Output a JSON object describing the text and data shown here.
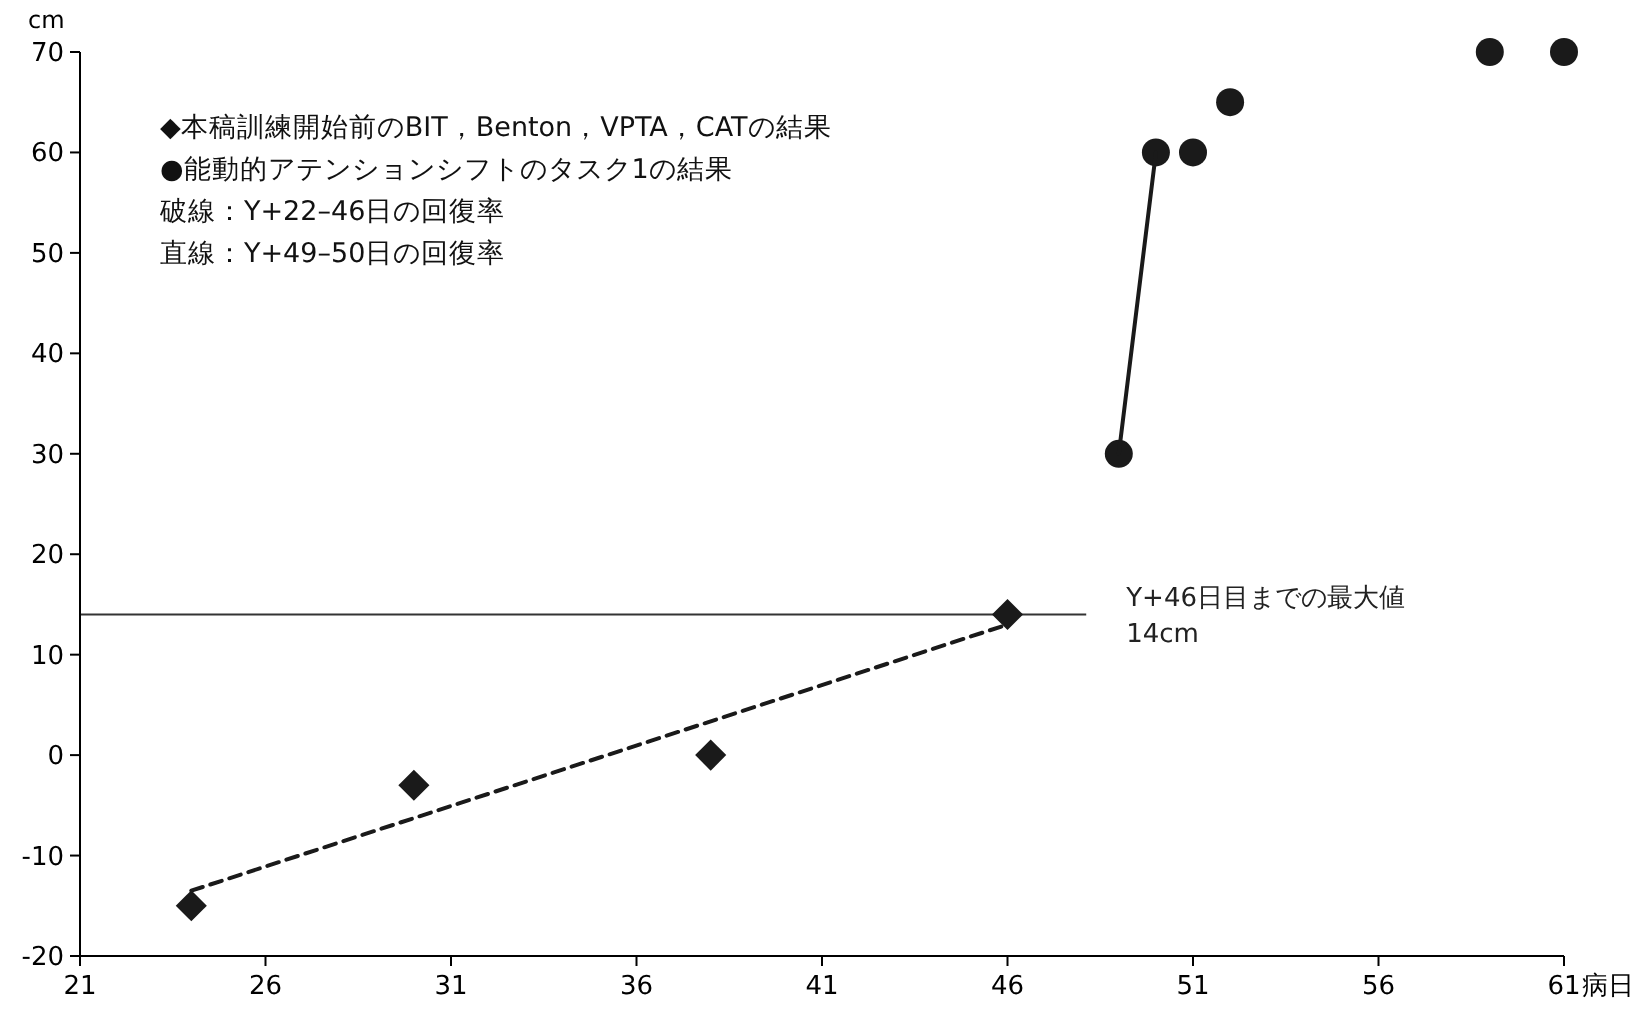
{
  "chart_data": {
    "type": "scatter",
    "xlabel": "病日",
    "ylabel": "cm",
    "xlim": [
      21,
      61
    ],
    "xticks": [
      21,
      26,
      31,
      36,
      41,
      46,
      51,
      56,
      61
    ],
    "ylim": [
      -20,
      70
    ],
    "yticks": [
      -20,
      -10,
      0,
      10,
      20,
      30,
      40,
      50,
      60,
      70
    ],
    "grid": false,
    "series": [
      {
        "marker": "diamond",
        "color": "#1a1a1a",
        "x": [
          24,
          30,
          38,
          46
        ],
        "values": [
          -15,
          -3,
          0,
          14
        ]
      },
      {
        "marker": "circle",
        "color": "#1a1a1a",
        "x": [
          49,
          50,
          51,
          52,
          59,
          61
        ],
        "values": [
          30,
          60,
          60,
          65,
          70,
          70
        ]
      },
      {
        "type": "line",
        "line_style": "dashed",
        "color": "#1a1a1a",
        "x": [
          24,
          46
        ],
        "values": [
          -13.5,
          13
        ]
      },
      {
        "type": "line",
        "line_style": "solid",
        "color": "#1a1a1a",
        "x": [
          49,
          50
        ],
        "values": [
          30,
          60
        ]
      }
    ],
    "ref_lines": [
      {
        "axis": "y",
        "value": 14,
        "label": "Y+46日目までの最大値\n14cm",
        "color": "#333333"
      }
    ],
    "annotations": [
      "◆本稿訓練開始前のBIT，Benton，VPTA，CATの結果",
      "●能動的アテンションシフトのタスク1の結果",
      "破線：Y+22–46日の回復率",
      "直線：Y+49–50日の回復率"
    ]
  }
}
